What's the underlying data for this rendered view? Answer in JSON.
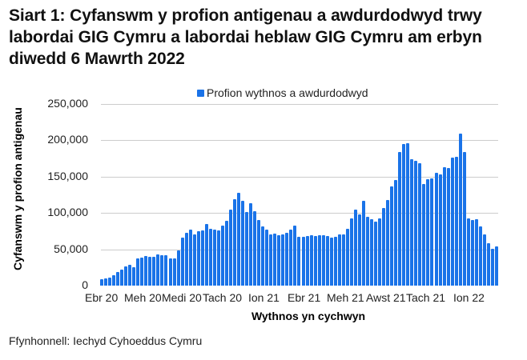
{
  "title": "Siart 1: Cyfanswm y profion antigenau a awdurdodwyd trwy labordai GIG Cymru a labordai heblaw GIG Cymru am erbyn diwedd 6 Mawrth 2022",
  "legend": {
    "label": "Profion wythnos a awdurdodwyd",
    "color": "#1a73e8"
  },
  "y_axis": {
    "label": "Cyfanswm y profion antigenau",
    "ticks": [
      "0",
      "50,000",
      "100,000",
      "150,000",
      "200,000",
      "250,000"
    ]
  },
  "x_axis": {
    "label": "Wythnos yn cychwyn",
    "ticks": [
      "Ebr 20",
      "Meh 20",
      "Medi 20",
      "Tach 20",
      "Ion 21",
      "Ebr 21",
      "Meh 21",
      "Awst 21",
      "Tach 21",
      "Ion 22"
    ]
  },
  "source": "Ffynhonnell: Iechyd Cyhoeddus Cymru",
  "chart_data": {
    "type": "bar",
    "title": "Siart 1: Cyfanswm y profion antigenau a awdurdodwyd trwy labordai GIG Cymru a labordai heblaw GIG Cymru am erbyn diwedd 6 Mawrth 2022",
    "xlabel": "Wythnos yn cychwyn",
    "ylabel": "Cyfanswm y profion antigenau",
    "ylim": [
      0,
      250000
    ],
    "grid": true,
    "legend_position": "top",
    "x_tick_labels": [
      "Ebr 20",
      "Meh 20",
      "Medi 20",
      "Tach 20",
      "Ion 21",
      "Ebr 21",
      "Meh 21",
      "Awst 21",
      "Tach 21",
      "Ion 22"
    ],
    "series": [
      {
        "name": "Profion wythnos a awdurdodwyd",
        "color": "#1a73e8",
        "values": [
          9000,
          10000,
          11000,
          14000,
          19000,
          22000,
          26000,
          29000,
          25000,
          37000,
          39000,
          41000,
          40000,
          40000,
          43000,
          42000,
          42000,
          38000,
          37000,
          48000,
          66000,
          73000,
          77000,
          71000,
          75000,
          76000,
          85000,
          78000,
          77000,
          76000,
          83000,
          89000,
          105000,
          119000,
          128000,
          117000,
          101000,
          113000,
          103000,
          90000,
          82000,
          77000,
          71000,
          72000,
          69000,
          70000,
          73000,
          77000,
          83000,
          67000,
          67000,
          68000,
          69000,
          68000,
          69000,
          69000,
          68000,
          66000,
          67000,
          70000,
          71000,
          78000,
          93000,
          105000,
          98000,
          117000,
          95000,
          91000,
          88000,
          93000,
          107000,
          118000,
          137000,
          145000,
          184000,
          195000,
          196000,
          174000,
          172000,
          169000,
          140000,
          146000,
          148000,
          155000,
          153000,
          163000,
          162000,
          176000,
          177000,
          209000,
          184000,
          93000,
          90000,
          92000,
          82000,
          71000,
          58000,
          51000,
          54000
        ]
      }
    ]
  }
}
